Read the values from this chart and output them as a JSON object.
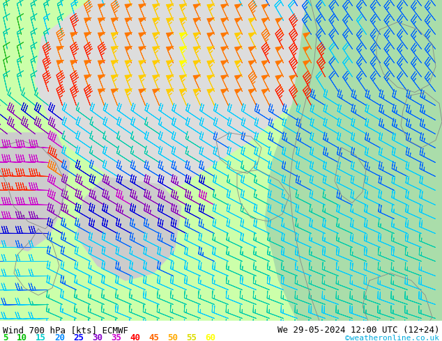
{
  "title_left": "Wind 700 hPa [kts] ECMWF",
  "title_right": "We 29-05-2024 12:00 UTC (12+24)",
  "credit": "©weatheronline.co.uk",
  "legend_values": [
    "5",
    "10",
    "15",
    "20",
    "25",
    "30",
    "35",
    "40",
    "45",
    "50",
    "55",
    "60"
  ],
  "legend_colors": [
    "#00cc00",
    "#00bb00",
    "#00cccc",
    "#0088ff",
    "#0000ff",
    "#8800cc",
    "#cc00cc",
    "#ff0000",
    "#ff6600",
    "#ffaa00",
    "#dddd00",
    "#ffff00"
  ],
  "bg_land_color": "#ccffaa",
  "bg_sea_color": "#dddddd",
  "figsize": [
    6.34,
    4.9
  ],
  "dpi": 100,
  "font_color": "#000000",
  "font_size_title": 9,
  "font_size_legend": 9,
  "font_size_credit": 8
}
